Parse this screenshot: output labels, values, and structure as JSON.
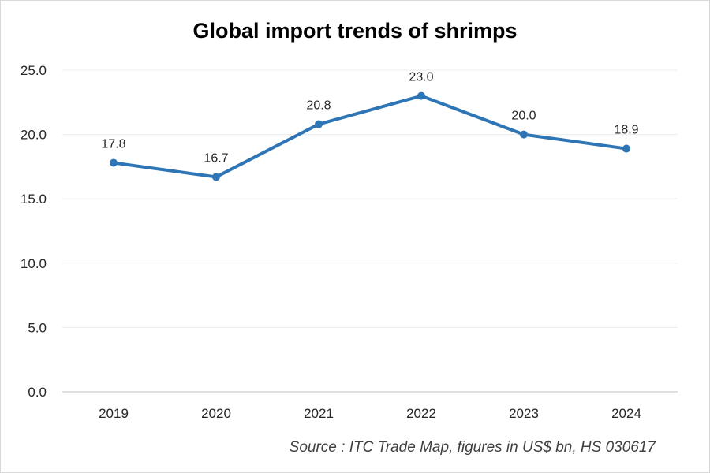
{
  "chart_data": {
    "type": "line",
    "title": "Global import trends of shrimps",
    "xlabel": "",
    "ylabel": "",
    "categories": [
      "2019",
      "2020",
      "2021",
      "2022",
      "2023",
      "2024"
    ],
    "series": [
      {
        "values": [
          17.8,
          16.7,
          20.8,
          23.0,
          20.0,
          18.9
        ],
        "color": "#2e75b6"
      }
    ],
    "data_labels": [
      "17.8",
      "16.7",
      "20.8",
      "23.0",
      "20.0",
      "18.9"
    ],
    "ylim": [
      0,
      25
    ],
    "yticks": [
      "0.0",
      "5.0",
      "10.0",
      "15.0",
      "20.0",
      "25.0"
    ],
    "grid": true,
    "legend": "none",
    "source": "Source : ITC Trade Map, figures in US$ bn, HS 030617"
  }
}
